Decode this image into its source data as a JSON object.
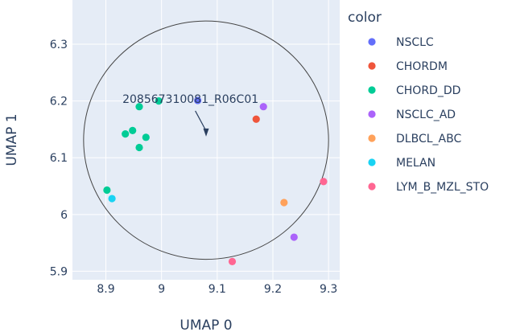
{
  "chart_data": {
    "type": "scatter",
    "xlabel": "UMAP 0",
    "ylabel": "UMAP 1",
    "xlim": [
      8.84,
      9.32
    ],
    "ylim": [
      5.885,
      6.378
    ],
    "x_ticks": [
      8.9,
      9,
      9.1,
      9.2,
      9.3
    ],
    "x_tick_labels": [
      "8.9",
      "9",
      "9.1",
      "9.2",
      "9.3"
    ],
    "y_ticks": [
      5.9,
      6,
      6.1,
      6.2,
      6.3
    ],
    "y_tick_labels": [
      "5.9",
      "6",
      "6.1",
      "6.2",
      "6.3"
    ],
    "grid": true,
    "legend": {
      "title": "color",
      "placement": "right"
    },
    "series": [
      {
        "name": "NSCLC",
        "color": "#636efa",
        "points": [
          {
            "x": 9.065,
            "y": 6.201
          }
        ]
      },
      {
        "name": "CHORDM",
        "color": "#EF553B",
        "points": [
          {
            "x": 9.17,
            "y": 6.168
          }
        ]
      },
      {
        "name": "CHORD_DD",
        "color": "#00cc96",
        "points": [
          {
            "x": 8.995,
            "y": 6.2
          },
          {
            "x": 8.96,
            "y": 6.19
          },
          {
            "x": 8.935,
            "y": 6.142
          },
          {
            "x": 8.948,
            "y": 6.148
          },
          {
            "x": 8.972,
            "y": 6.136
          },
          {
            "x": 8.96,
            "y": 6.118
          },
          {
            "x": 8.902,
            "y": 6.043
          }
        ]
      },
      {
        "name": "NSCLC_AD",
        "color": "#ab63fa",
        "points": [
          {
            "x": 9.183,
            "y": 6.19
          },
          {
            "x": 9.238,
            "y": 5.96
          }
        ]
      },
      {
        "name": "DLBCL_ABC",
        "color": "#FFA15A",
        "points": [
          {
            "x": 9.22,
            "y": 6.021
          }
        ]
      },
      {
        "name": "MELAN",
        "color": "#19d3f3",
        "points": [
          {
            "x": 8.911,
            "y": 6.028
          }
        ]
      },
      {
        "name": "LYM_B_MZL_STO",
        "color": "#FF6692",
        "points": [
          {
            "x": 9.291,
            "y": 6.058
          },
          {
            "x": 9.127,
            "y": 5.917
          }
        ]
      }
    ],
    "annotations": [
      {
        "text": "208567310081_R06C01",
        "point_x": 9.065,
        "point_y": 6.201,
        "arrow_tip_x": 9.08,
        "arrow_tip_y": 6.136,
        "has_arrow": true
      }
    ],
    "shapes": [
      {
        "type": "circle",
        "center_x": 9.08,
        "center_y": 6.131,
        "radius_x": 0.22,
        "radius_y": 0.21,
        "stroke": "#444444"
      }
    ],
    "background": "#e5ecf6",
    "grid_color": "#ffffff"
  }
}
